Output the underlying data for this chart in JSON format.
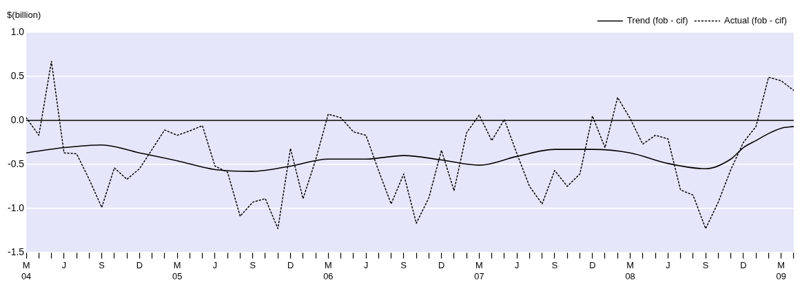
{
  "chart_data": {
    "type": "line",
    "ylabel": "$(billion)",
    "legend": "top right",
    "grid": "y",
    "x": [
      "2004-03",
      "2004-04",
      "2004-05",
      "2004-06",
      "2004-07",
      "2004-08",
      "2004-09",
      "2004-10",
      "2004-11",
      "2004-12",
      "2005-01",
      "2005-02",
      "2005-03",
      "2005-04",
      "2005-05",
      "2005-06",
      "2005-07",
      "2005-08",
      "2005-09",
      "2005-10",
      "2005-11",
      "2005-12",
      "2006-01",
      "2006-02",
      "2006-03",
      "2006-04",
      "2006-05",
      "2006-06",
      "2006-07",
      "2006-08",
      "2006-09",
      "2006-10",
      "2006-11",
      "2006-12",
      "2007-01",
      "2007-02",
      "2007-03",
      "2007-04",
      "2007-05",
      "2007-06",
      "2007-07",
      "2007-08",
      "2007-09",
      "2007-10",
      "2007-11",
      "2007-12",
      "2008-01",
      "2008-02",
      "2008-03",
      "2008-04",
      "2008-05",
      "2008-06",
      "2008-07",
      "2008-08",
      "2008-09",
      "2008-10",
      "2008-11",
      "2008-12",
      "2009-01",
      "2009-02",
      "2009-03",
      "2009-04"
    ],
    "xlim": [
      "2004-03",
      "2009-04"
    ],
    "xticks": [
      {
        "value": "2004-03",
        "label": "M\n04"
      },
      {
        "value": "2004-04",
        "label": null
      },
      {
        "value": "2004-05",
        "label": null
      },
      {
        "value": "2004-06",
        "label": "J"
      },
      {
        "value": "2004-07",
        "label": null
      },
      {
        "value": "2004-08",
        "label": null
      },
      {
        "value": "2004-09",
        "label": "S"
      },
      {
        "value": "2004-10",
        "label": null
      },
      {
        "value": "2004-11",
        "label": null
      },
      {
        "value": "2004-12",
        "label": "D"
      },
      {
        "value": "2005-01",
        "label": null
      },
      {
        "value": "2005-02",
        "label": null
      },
      {
        "value": "2005-03",
        "label": "M\n05"
      },
      {
        "value": "2005-04",
        "label": null
      },
      {
        "value": "2005-05",
        "label": null
      },
      {
        "value": "2005-06",
        "label": "J"
      },
      {
        "value": "2005-07",
        "label": null
      },
      {
        "value": "2005-08",
        "label": null
      },
      {
        "value": "2005-09",
        "label": "S"
      },
      {
        "value": "2005-10",
        "label": null
      },
      {
        "value": "2005-11",
        "label": null
      },
      {
        "value": "2005-12",
        "label": "D"
      },
      {
        "value": "2006-01",
        "label": null
      },
      {
        "value": "2006-02",
        "label": null
      },
      {
        "value": "2006-03",
        "label": "M\n06"
      },
      {
        "value": "2006-04",
        "label": null
      },
      {
        "value": "2006-05",
        "label": null
      },
      {
        "value": "2006-06",
        "label": "J"
      },
      {
        "value": "2006-07",
        "label": null
      },
      {
        "value": "2006-08",
        "label": null
      },
      {
        "value": "2006-09",
        "label": "S"
      },
      {
        "value": "2006-10",
        "label": null
      },
      {
        "value": "2006-11",
        "label": null
      },
      {
        "value": "2006-12",
        "label": "D"
      },
      {
        "value": "2007-01",
        "label": null
      },
      {
        "value": "2007-02",
        "label": null
      },
      {
        "value": "2007-03",
        "label": "M\n07"
      },
      {
        "value": "2007-04",
        "label": null
      },
      {
        "value": "2007-05",
        "label": null
      },
      {
        "value": "2007-06",
        "label": "J"
      },
      {
        "value": "2007-07",
        "label": null
      },
      {
        "value": "2007-08",
        "label": null
      },
      {
        "value": "2007-09",
        "label": "S"
      },
      {
        "value": "2007-10",
        "label": null
      },
      {
        "value": "2007-11",
        "label": null
      },
      {
        "value": "2007-12",
        "label": "D"
      },
      {
        "value": "2008-01",
        "label": null
      },
      {
        "value": "2008-02",
        "label": null
      },
      {
        "value": "2008-03",
        "label": "M\n08"
      },
      {
        "value": "2008-04",
        "label": null
      },
      {
        "value": "2008-05",
        "label": null
      },
      {
        "value": "2008-06",
        "label": "J"
      },
      {
        "value": "2008-07",
        "label": null
      },
      {
        "value": "2008-08",
        "label": null
      },
      {
        "value": "2008-09",
        "label": "S"
      },
      {
        "value": "2008-10",
        "label": null
      },
      {
        "value": "2008-11",
        "label": null
      },
      {
        "value": "2008-12",
        "label": "D"
      },
      {
        "value": "2009-01",
        "label": null
      },
      {
        "value": "2009-02",
        "label": null
      },
      {
        "value": "2009-03",
        "label": "M\n09"
      },
      {
        "value": "2009-04",
        "label": null
      }
    ],
    "ylim": [
      -1.5,
      1.0
    ],
    "yticks": [
      {
        "value": -1.5,
        "label": "-1.5"
      },
      {
        "value": -1.0,
        "label": "-1.0"
      },
      {
        "value": -0.5,
        "label": "-0.5"
      },
      {
        "value": 0,
        "label": "0.0"
      },
      {
        "value": 0.5,
        "label": "0.5"
      },
      {
        "value": 1.0,
        "label": "1.0"
      }
    ],
    "ref_lines": [
      {
        "axis": "y",
        "value": 0,
        "color": "#000000",
        "line_style": "solid"
      }
    ],
    "series": [
      {
        "name": "Trend (fob - cif)",
        "color": "#000000",
        "line_style": "solid",
        "x": [
          "2004-03",
          "2004-06",
          "2004-09",
          "2004-12",
          "2005-03",
          "2005-06",
          "2005-09",
          "2005-12",
          "2006-03",
          "2006-06",
          "2006-09",
          "2006-12",
          "2007-03",
          "2007-06",
          "2007-09",
          "2007-12",
          "2008-03",
          "2008-06",
          "2008-09",
          "2008-11",
          "2008-12",
          "2009-01",
          "2009-02",
          "2009-03",
          "2009-04"
        ],
        "values": [
          -0.37,
          -0.31,
          -0.28,
          -0.37,
          -0.46,
          -0.56,
          -0.58,
          -0.52,
          -0.44,
          -0.44,
          -0.4,
          -0.45,
          -0.51,
          -0.41,
          -0.33,
          -0.33,
          -0.37,
          -0.49,
          -0.55,
          -0.44,
          -0.31,
          -0.23,
          -0.15,
          -0.09,
          -0.07
        ]
      },
      {
        "name": "Actual (fob - cif)",
        "color": "#000000",
        "line_style": "dotted",
        "values": [
          0.03,
          -0.17,
          0.67,
          -0.37,
          -0.38,
          -0.67,
          -0.99,
          -0.54,
          -0.67,
          -0.55,
          -0.33,
          -0.11,
          -0.17,
          -0.12,
          -0.06,
          -0.52,
          -0.59,
          -1.09,
          -0.93,
          -0.89,
          -1.23,
          -0.32,
          -0.89,
          -0.45,
          0.07,
          0.03,
          -0.13,
          -0.17,
          -0.57,
          -0.95,
          -0.61,
          -1.17,
          -0.88,
          -0.34,
          -0.8,
          -0.14,
          0.06,
          -0.23,
          0.01,
          -0.38,
          -0.75,
          -0.95,
          -0.57,
          -0.75,
          -0.61,
          0.05,
          -0.31,
          0.26,
          0.02,
          -0.27,
          -0.17,
          -0.21,
          -0.79,
          -0.85,
          -1.23,
          -0.93,
          -0.56,
          -0.25,
          -0.07,
          0.49,
          0.45,
          0.34
        ]
      }
    ]
  }
}
